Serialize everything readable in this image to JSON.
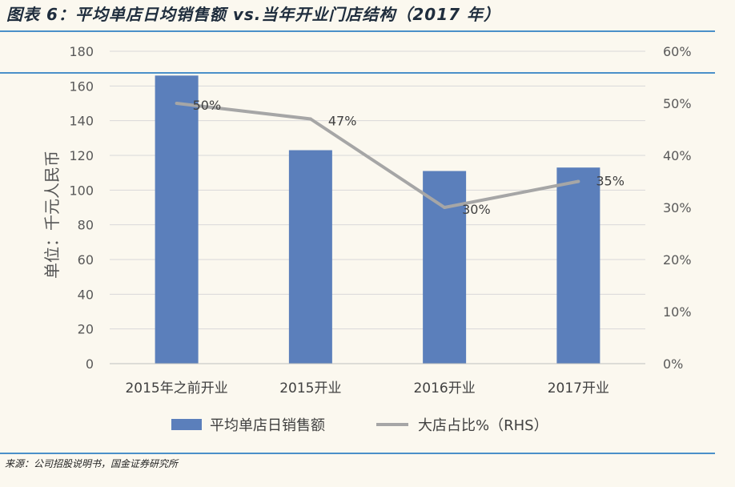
{
  "figure": {
    "title": "图表 6：平均单店日均销售额 vs.当年开业门店结构（2017 年）",
    "source": "来源：公司招股说明书，国金证券研究所"
  },
  "chart_data": {
    "type": "bar",
    "categories": [
      "2015年之前开业",
      "2015开业",
      "2016开业",
      "2017开业"
    ],
    "ylabel": "单位：千元人民币",
    "ylim": [
      0,
      180
    ],
    "y_ticks": [
      0,
      20,
      40,
      60,
      80,
      100,
      120,
      140,
      160,
      180
    ],
    "y2lim": [
      0,
      60
    ],
    "y2_ticks": [
      "0%",
      "10%",
      "20%",
      "30%",
      "40%",
      "50%",
      "60%"
    ],
    "y2_tick_values": [
      0,
      10,
      20,
      30,
      40,
      50,
      60
    ],
    "series": [
      {
        "name": "平均单店日销售额",
        "type": "bar",
        "axis": "left",
        "values": [
          166,
          123,
          111,
          113
        ],
        "color": "#5b7fbb"
      },
      {
        "name": "大店占比%（RHS）",
        "type": "line",
        "axis": "right",
        "values": [
          50,
          47,
          30,
          35
        ],
        "labels": [
          "50%",
          "47%",
          "30%",
          "35%"
        ],
        "color": "#a6a6a6"
      }
    ],
    "grid": true,
    "legend_position": "bottom"
  }
}
